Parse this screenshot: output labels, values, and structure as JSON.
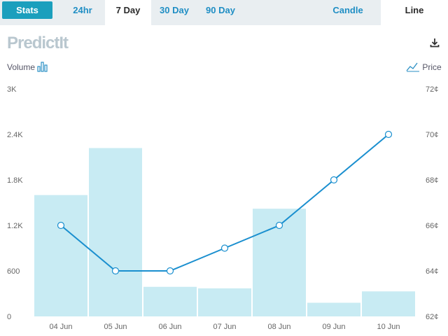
{
  "tabs": [
    {
      "label": "Stats"
    },
    {
      "label": "24hr"
    },
    {
      "label": "7 Day"
    },
    {
      "label": "30 Day"
    },
    {
      "label": "90 Day"
    },
    {
      "label": "Candle"
    },
    {
      "label": "Line"
    }
  ],
  "logo_text": "PredictIt",
  "left_axis_title": "Volume",
  "right_axis_title": "Price",
  "icons": [
    "volume-bars-icon",
    "price-line-icon",
    "download-icon"
  ],
  "colors": {
    "accent": "#1b9fbd",
    "tab_text": "#1f8ec4",
    "bar_fill": "#c8ebf3",
    "line": "#1a8fcf",
    "topbar_bg": "#e9eef1"
  },
  "chart_data": {
    "type": "bar+line",
    "categories": [
      "04 Jun",
      "05 Jun",
      "06 Jun",
      "07 Jun",
      "08 Jun",
      "09 Jun",
      "10 Jun"
    ],
    "series": [
      {
        "name": "Volume",
        "type": "bar",
        "axis": "left",
        "values": [
          1600,
          2220,
          390,
          370,
          1420,
          180,
          330
        ]
      },
      {
        "name": "Price",
        "type": "line",
        "axis": "right",
        "values": [
          66,
          64,
          64,
          65,
          66,
          68,
          70
        ]
      }
    ],
    "left_axis": {
      "ylim": [
        0,
        3000
      ],
      "ticks": [
        "0",
        "600",
        "1.2K",
        "1.8K",
        "2.4K",
        "3K"
      ]
    },
    "right_axis": {
      "ylim": [
        62,
        72
      ],
      "ticks": [
        "62¢",
        "64¢",
        "66¢",
        "68¢",
        "70¢",
        "72¢"
      ]
    },
    "grid": false
  }
}
